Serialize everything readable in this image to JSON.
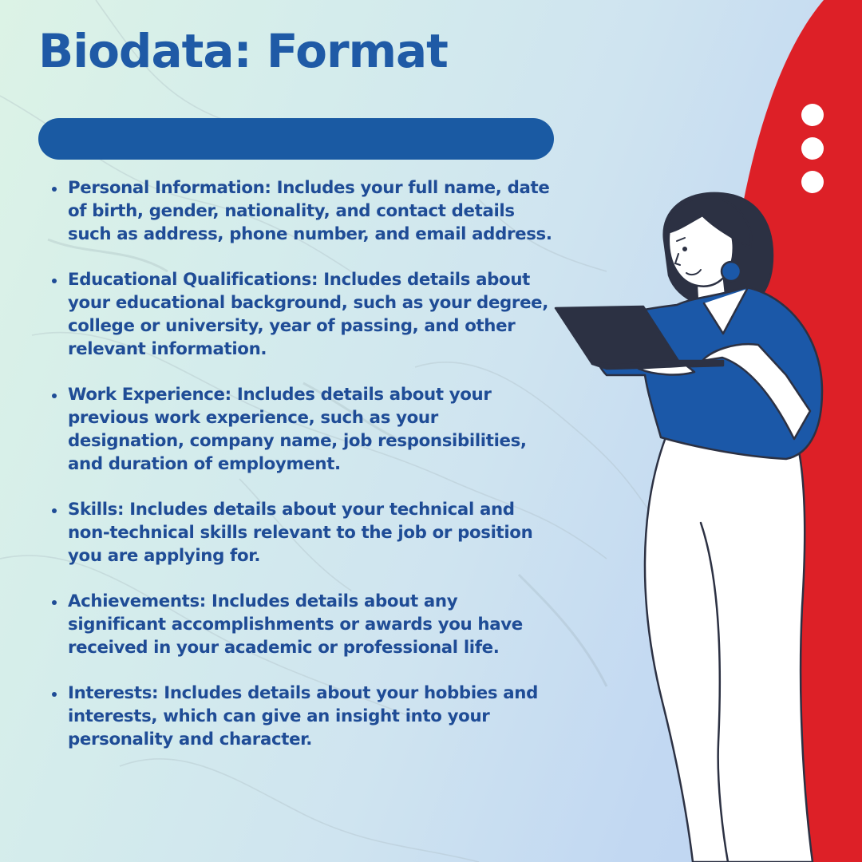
{
  "title": "Biodata: Format",
  "colors": {
    "title_text": "#1f5aa6",
    "accent_bar": "#1a5aa3",
    "body_text": "#1f4c96",
    "red_shape": "#dd2027",
    "shirt": "#1b58a8",
    "hair_laptop": "#2c3143"
  },
  "bullets": [
    {
      "text": "Personal Information: Includes your full name, date of birth, gender, nationality, and contact details such as address, phone number, and email address."
    },
    {
      "text": "Educational Qualifications: Includes details about your educational background, such as your degree, college or university, year of passing, and other relevant information."
    },
    {
      "text": "Work Experience: Includes details about your previous work experience, such as your designation, company name, job responsibilities, and duration of employment."
    },
    {
      "text": "Skills: Includes details about your technical and non-technical skills relevant to the job or position you are applying for."
    },
    {
      "text": "Achievements: Includes details about any significant accomplishments or awards you have received in your academic or professional life."
    },
    {
      "text": "Interests:  Includes details about your hobbies and interests, which can give an insight into your personality and character."
    }
  ]
}
